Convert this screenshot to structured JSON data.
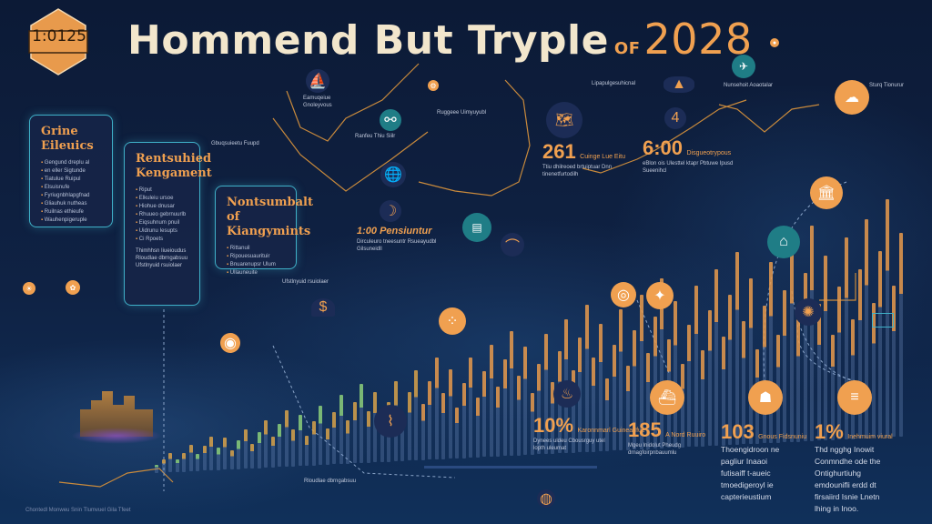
{
  "header": {
    "badge_text": "1:0125",
    "title_main": "Hommend But Tryple",
    "title_of": "OF",
    "title_year": "2028"
  },
  "cards": [
    {
      "title": "Grine Eileuics",
      "items": [
        "Gengund dreplu al",
        "en eller Sigtunde",
        "Tiatulue Ruipul",
        "Elsuisnufe",
        "Fyriugnbhlapgfnad",
        "Gliauhuk nutheas",
        "Ruilnas ethieufe",
        "Wauhenpigeruple"
      ]
    },
    {
      "title": "Rentsuhied Kengament",
      "items": [
        "Riput",
        "Elkuleiu ursoe",
        "Hiohue dnusar",
        "Rhuueo gebrnuurlb",
        "Eiqsuhnum pnuil",
        "Uidrunu Iesupts",
        "Ci Rpoets"
      ]
    },
    {
      "title": "Nontsumbalt of Kiangymints",
      "items": [
        "Rittanuil",
        "Ripouesuaurituir",
        "Bnuarenupsr Ulum",
        "Ullauneuite"
      ]
    }
  ],
  "stats": [
    {
      "value": "261",
      "label": "Cuinge Lue Eitu",
      "text": "Ttiu dhilreoed brtuiptuar Dnn tinenetfurtodilh"
    },
    {
      "value": "6:00",
      "label": "Disgueotrypous",
      "text": "eBlon ois Ulesttel ktapr Pbtuwe Ipusd Sueenihcl"
    },
    {
      "value": "1:00 Pensiuntur",
      "label": "",
      "text": "Dirculeuro tneesuntr Rsueayudbl Gilsuneidll"
    },
    {
      "value": "10%",
      "label": "Karonnmarl Guinea Ifue",
      "text": "Dynees uldeu Cbousrguy utel lopth uleumat"
    },
    {
      "value": "185",
      "label": "A Nord Ruuiro",
      "text": "Mgeu lnidolut Pheudg drnagfoirpnbauumlu"
    },
    {
      "value": "103",
      "label": "Gnous Fidsnuniu",
      "text": "Thoengidroon ne pagliur Inaaoi futisaiff t-aueic tmoedigeroyl ie capterieustium"
    },
    {
      "value": "1%",
      "label": "Inehmuim viural",
      "text": "Thd ngghg Inowit Conmndhe ode the Ontighurtiuhg emdounifli erdd dt firsaiird Isnie Lnetn lhing in Inoo."
    }
  ],
  "misc_text": [
    "Eamuqeiue Gnoleyvous",
    "Ranfeu Thiu Siilr",
    "Ruggeee Uimyuyubl",
    "Lipapulgesuhicnal",
    "Gbuqsuieetu Fuupd",
    "Thimhhsn Iiueioudus",
    "Rloudlae dbrngabsuu",
    "Ufstlnyuid rsuiolaer",
    "Nunsehoit Aoaotalar",
    "Sturq Tionurur"
  ],
  "footer_caption": "Chontedl Monweu Snin Tlumvuel Gila Tfeet",
  "colors": {
    "accent": "#f0a050",
    "teal": "#1f7d86",
    "border": "#3fb0c8",
    "bg": "#0f2244"
  }
}
